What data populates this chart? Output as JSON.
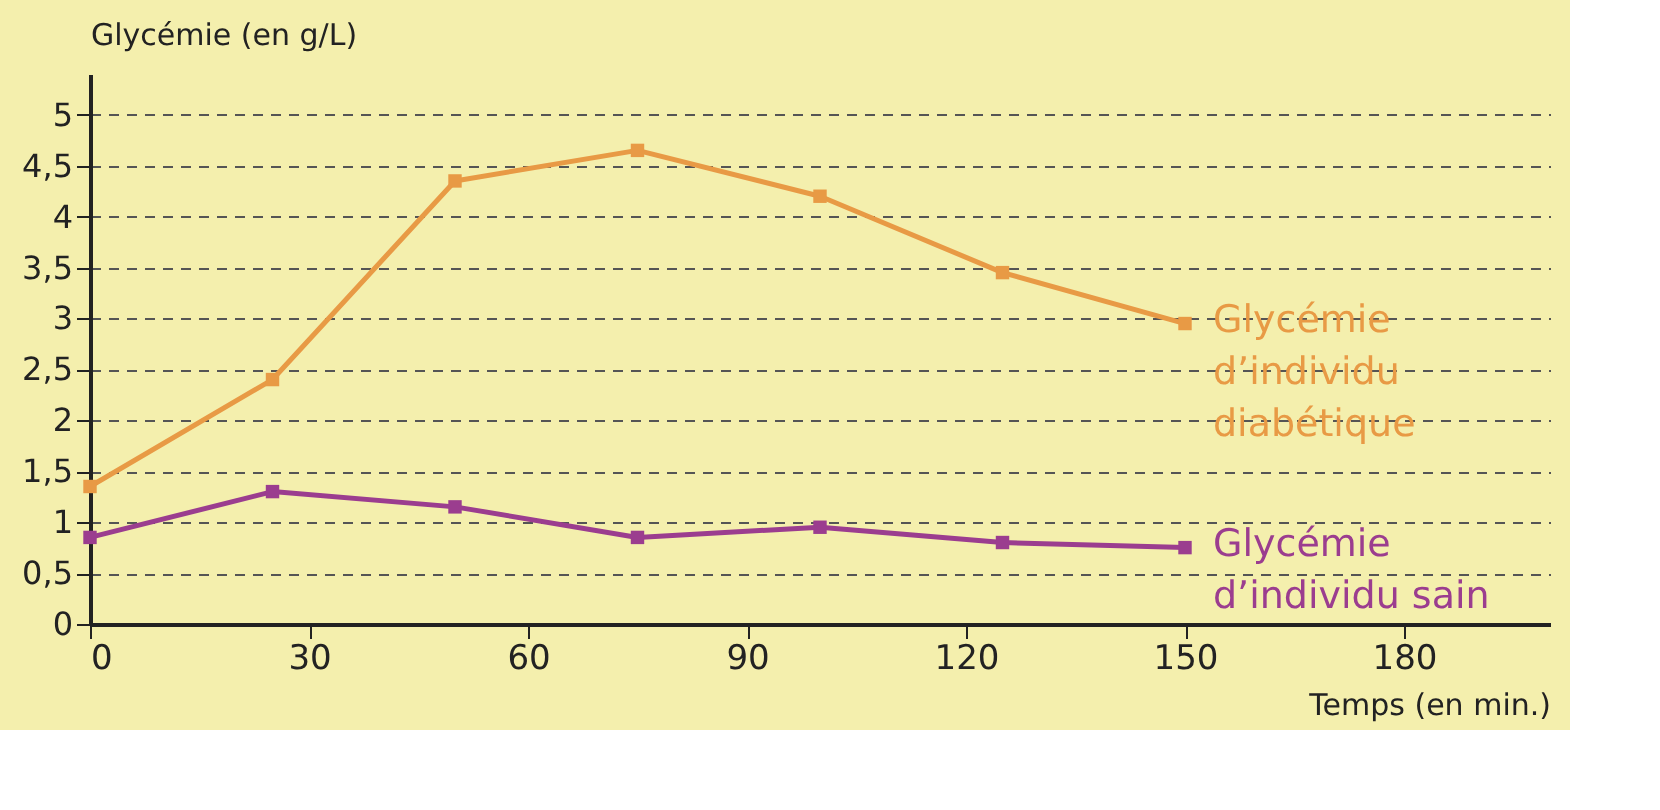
{
  "chart_data": {
    "type": "line",
    "xlabel": "Temps (en min.)",
    "ylabel": "Glycémie (en g/L)",
    "x": [
      0,
      25,
      50,
      75,
      100,
      125,
      150
    ],
    "series": [
      {
        "name": "Glycémie d’individu diabétique",
        "color": "#e89a45",
        "values": [
          1.35,
          2.4,
          4.35,
          4.65,
          4.2,
          3.45,
          2.95
        ]
      },
      {
        "name": "Glycémie d’individu sain",
        "color": "#9b3d8f",
        "values": [
          0.85,
          1.3,
          1.15,
          0.85,
          0.95,
          0.8,
          0.75
        ]
      }
    ],
    "xlim": [
      0,
      200
    ],
    "xticks": [
      0,
      30,
      60,
      90,
      120,
      150,
      180
    ],
    "ylim": [
      0,
      5.4
    ],
    "yticks": [
      0,
      {
        "value": 0.5,
        "label": "0,5"
      },
      1,
      {
        "value": 1.5,
        "label": "1,5"
      },
      2,
      {
        "value": 2.5,
        "label": "2,5"
      },
      3,
      {
        "value": 3.5,
        "label": "3,5"
      },
      4,
      {
        "value": 4.5,
        "label": "4,5"
      },
      5
    ],
    "grid": "y",
    "marker": "square",
    "line_style": "solid"
  }
}
